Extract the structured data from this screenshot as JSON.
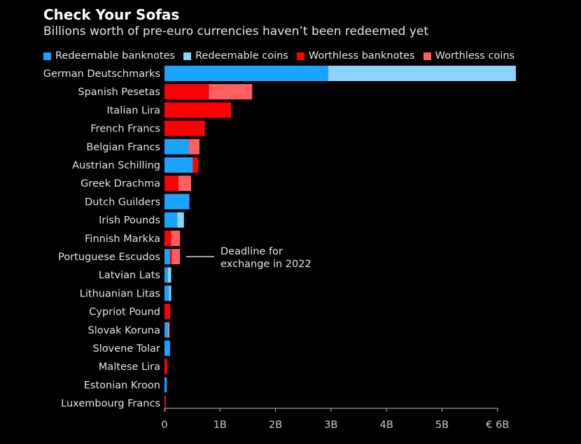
{
  "header": {
    "title": "Check Your Sofas",
    "subtitle": "Billions worth of pre-euro currencies haven’t been redeemed yet"
  },
  "chart_data": {
    "type": "bar",
    "orientation": "horizontal",
    "stacked": true,
    "legend_position": "top-left",
    "grid": false,
    "xlim": [
      0,
      6
    ],
    "x_ticks": [
      0,
      1,
      2,
      3,
      4,
      5,
      6
    ],
    "x_tick_labels": [
      "0",
      "1B",
      "2B",
      "3B",
      "4B",
      "5B",
      "€ 6B"
    ],
    "categories": [
      "German Deutschmarks",
      "Spanish Pesetas",
      "Italian Lira",
      "French Francs",
      "Belgian Francs",
      "Austrian Schilling",
      "Greek Drachma",
      "Dutch Guilders",
      "Irish Pounds",
      "Finnish Markka",
      "Portuguese Escudos",
      "Latvian Lats",
      "Lithuanian Litas",
      "Cypriot Pound",
      "Slovak Koruna",
      "Slovene Tolar",
      "Maltese Lira",
      "Estonian Kroon",
      "Luxembourg Francs"
    ],
    "series": [
      {
        "name": "Redeemable banknotes",
        "color": "#1aa3ff",
        "values": [
          2.95,
          0,
          0,
          0,
          0.44,
          0.51,
          0,
          0.45,
          0.23,
          0,
          0.1,
          0.06,
          0.08,
          0,
          0.06,
          0.1,
          0,
          0.04,
          0
        ]
      },
      {
        "name": "Redeemable coins",
        "color": "#8cd3ff",
        "values": [
          3.38,
          0,
          0,
          0,
          0,
          0,
          0,
          0,
          0.12,
          0,
          0,
          0.06,
          0.04,
          0,
          0.02,
          0,
          0,
          0,
          0
        ]
      },
      {
        "name": "Worthless banknotes",
        "color": "#ff0000",
        "values": [
          0,
          0.8,
          1.2,
          0.73,
          0,
          0.1,
          0.25,
          0,
          0,
          0.12,
          0.03,
          0,
          0,
          0.1,
          0.02,
          0,
          0.05,
          0,
          0.01
        ]
      },
      {
        "name": "Worthless coins",
        "color": "#ff5f5f",
        "values": [
          0,
          0.78,
          0,
          0,
          0.19,
          0,
          0.23,
          0,
          0,
          0.16,
          0.15,
          0,
          0,
          0,
          0,
          0,
          0,
          0,
          0.01
        ]
      }
    ],
    "annotations": [
      {
        "text_lines": [
          "Deadline for",
          "exchange in 2022"
        ],
        "target_category": "Portuguese Escudos"
      }
    ]
  },
  "colors": {
    "background": "#000000",
    "text": "#e6e6e6",
    "axis": "#bbbbbb",
    "tick_text": "#cccccc"
  }
}
